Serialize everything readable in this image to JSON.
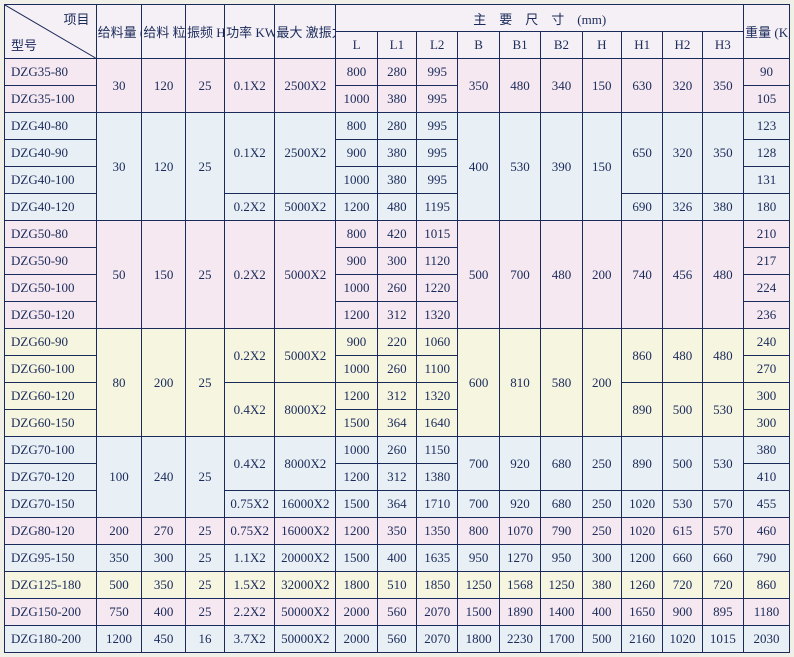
{
  "header": {
    "diag_top": "项目",
    "diag_bot": "型号",
    "feed_rate": "给料量\n(t/h)",
    "feed_size": "给料\n粒度\nmm",
    "freq": "振频\nHz",
    "power": "功率\nKW",
    "force": "最大\n激振力\nN",
    "dims": "主　要　尺　寸　(mm)",
    "L": "L",
    "L1": "L1",
    "L2": "L2",
    "B": "B",
    "B1": "B1",
    "B2": "B2",
    "H": "H",
    "H1": "H1",
    "H2": "H2",
    "H3": "H3",
    "weight": "重量\n(Kg)"
  },
  "colors": {
    "pink": "#f5e8f0",
    "blue": "#e8f0f5",
    "yellow": "#f5f5e0",
    "border": "#1a2a5a",
    "text": "#1a2a5a"
  },
  "rows": [
    {
      "model": "DZG35-80",
      "c": "pink",
      "feed": "30",
      "size": "120",
      "freq": "25",
      "pow": "0.1X2",
      "force": "2500X2",
      "L": "800",
      "L1": "280",
      "L2": "995",
      "B": "350",
      "B1": "480",
      "B2": "340",
      "H": "150",
      "H1": "630",
      "H2": "320",
      "H3": "350",
      "wt": "90",
      "span": {
        "feed": 2,
        "size": 2,
        "freq": 2,
        "pow": 2,
        "force": 2,
        "B": 2,
        "B1": 2,
        "B2": 2,
        "H": 2,
        "H1": 2,
        "H2": 2,
        "H3": 2
      }
    },
    {
      "model": "DZG35-100",
      "c": "pink",
      "L": "1000",
      "L1": "380",
      "L2": "995",
      "wt": "105"
    },
    {
      "model": "DZG40-80",
      "c": "blue",
      "feed": "30",
      "size": "120",
      "freq": "25",
      "pow": "0.1X2",
      "force": "2500X2",
      "L": "800",
      "L1": "280",
      "L2": "995",
      "B": "400",
      "B1": "530",
      "B2": "390",
      "H": "150",
      "H1": "650",
      "H2": "320",
      "H3": "350",
      "wt": "123",
      "span": {
        "feed": 4,
        "size": 4,
        "freq": 4,
        "pow": 3,
        "force": 3,
        "B": 4,
        "B1": 4,
        "B2": 4,
        "H": 4,
        "H1": 3,
        "H2": 3,
        "H3": 3
      }
    },
    {
      "model": "DZG40-90",
      "c": "blue",
      "L": "900",
      "L1": "380",
      "L2": "995",
      "wt": "128"
    },
    {
      "model": "DZG40-100",
      "c": "blue",
      "L": "1000",
      "L1": "380",
      "L2": "995",
      "wt": "131"
    },
    {
      "model": "DZG40-120",
      "c": "blue",
      "pow": "0.2X2",
      "force": "5000X2",
      "L": "1200",
      "L1": "480",
      "L2": "1195",
      "H1": "690",
      "H2": "326",
      "H3": "380",
      "wt": "180"
    },
    {
      "model": "DZG50-80",
      "c": "pink",
      "feed": "50",
      "size": "150",
      "freq": "25",
      "pow": "0.2X2",
      "force": "5000X2",
      "L": "800",
      "L1": "420",
      "L2": "1015",
      "B": "500",
      "B1": "700",
      "B2": "480",
      "H": "200",
      "H1": "740",
      "H2": "456",
      "H3": "480",
      "wt": "210",
      "span": {
        "feed": 4,
        "size": 4,
        "freq": 4,
        "pow": 4,
        "force": 4,
        "B": 4,
        "B1": 4,
        "B2": 4,
        "H": 4,
        "H1": 4,
        "H2": 4,
        "H3": 4
      }
    },
    {
      "model": "DZG50-90",
      "c": "pink",
      "L": "900",
      "L1": "300",
      "L2": "1120",
      "wt": "217"
    },
    {
      "model": "DZG50-100",
      "c": "pink",
      "L": "1000",
      "L1": "260",
      "L2": "1220",
      "wt": "224"
    },
    {
      "model": "DZG50-120",
      "c": "pink",
      "L": "1200",
      "L1": "312",
      "L2": "1320",
      "wt": "236"
    },
    {
      "model": "DZG60-90",
      "c": "yellow",
      "feed": "80",
      "size": "200",
      "freq": "25",
      "pow": "0.2X2",
      "force": "5000X2",
      "L": "900",
      "L1": "220",
      "L2": "1060",
      "B": "600",
      "B1": "810",
      "B2": "580",
      "H": "200",
      "H1": "860",
      "H2": "480",
      "H3": "480",
      "wt": "240",
      "span": {
        "feed": 4,
        "size": 4,
        "freq": 4,
        "pow": 2,
        "force": 2,
        "B": 4,
        "B1": 4,
        "B2": 4,
        "H": 4,
        "H1": 2,
        "H2": 2,
        "H3": 2
      }
    },
    {
      "model": "DZG60-100",
      "c": "yellow",
      "L": "1000",
      "L1": "260",
      "L2": "1100",
      "wt": "270"
    },
    {
      "model": "DZG60-120",
      "c": "yellow",
      "pow": "0.4X2",
      "force": "8000X2",
      "L": "1200",
      "L1": "312",
      "L2": "1320",
      "H1": "890",
      "H2": "500",
      "H3": "530",
      "wt": "300",
      "span": {
        "pow": 2,
        "force": 2,
        "H1": 2,
        "H2": 2,
        "H3": 2
      }
    },
    {
      "model": "DZG60-150",
      "c": "yellow",
      "L": "1500",
      "L1": "364",
      "L2": "1640",
      "wt": "300"
    },
    {
      "model": "DZG70-100",
      "c": "blue",
      "feed": "100",
      "size": "240",
      "freq": "25",
      "pow": "0.4X2",
      "force": "8000X2",
      "L": "1000",
      "L1": "260",
      "L2": "1150",
      "B": "700",
      "B1": "920",
      "B2": "680",
      "H": "250",
      "H1": "890",
      "H2": "500",
      "H3": "530",
      "wt": "380",
      "span": {
        "feed": 3,
        "size": 3,
        "freq": 3,
        "pow": 2,
        "force": 2,
        "B": 2,
        "B1": 2,
        "B2": 2,
        "H": 2,
        "H1": 2,
        "H2": 2,
        "H3": 2
      }
    },
    {
      "model": "DZG70-120",
      "c": "blue",
      "L": "1200",
      "L1": "312",
      "L2": "1380",
      "wt": "410"
    },
    {
      "model": "DZG70-150",
      "c": "blue",
      "pow": "0.75X2",
      "force": "16000X2",
      "L": "1500",
      "L1": "364",
      "L2": "1710",
      "B": "700",
      "B1": "920",
      "B2": "680",
      "H": "250",
      "H1": "1020",
      "H2": "530",
      "H3": "570",
      "wt": "455"
    },
    {
      "model": "DZG80-120",
      "c": "pink",
      "feed": "200",
      "size": "270",
      "freq": "25",
      "pow": "0.75X2",
      "force": "16000X2",
      "L": "1200",
      "L1": "350",
      "L2": "1350",
      "B": "800",
      "B1": "1070",
      "B2": "790",
      "H": "250",
      "H1": "1020",
      "H2": "615",
      "H3": "570",
      "wt": "460"
    },
    {
      "model": "DZG95-150",
      "c": "blue",
      "feed": "350",
      "size": "300",
      "freq": "25",
      "pow": "1.1X2",
      "force": "20000X2",
      "L": "1500",
      "L1": "400",
      "L2": "1635",
      "B": "950",
      "B1": "1270",
      "B2": "950",
      "H": "300",
      "H1": "1200",
      "H2": "660",
      "H3": "660",
      "wt": "790"
    },
    {
      "model": "DZG125-180",
      "c": "yellow",
      "feed": "500",
      "size": "350",
      "freq": "25",
      "pow": "1.5X2",
      "force": "32000X2",
      "L": "1800",
      "L1": "510",
      "L2": "1850",
      "B": "1250",
      "B1": "1568",
      "B2": "1250",
      "H": "380",
      "H1": "1260",
      "H2": "720",
      "H3": "720",
      "wt": "860"
    },
    {
      "model": "DZG150-200",
      "c": "pink",
      "feed": "750",
      "size": "400",
      "freq": "25",
      "pow": "2.2X2",
      "force": "50000X2",
      "L": "2000",
      "L1": "560",
      "L2": "2070",
      "B": "1500",
      "B1": "1890",
      "B2": "1400",
      "H": "400",
      "H1": "1650",
      "H2": "900",
      "H3": "895",
      "wt": "1180"
    },
    {
      "model": "DZG180-200",
      "c": "blue",
      "feed": "1200",
      "size": "450",
      "freq": "16",
      "pow": "3.7X2",
      "force": "50000X2",
      "L": "2000",
      "L1": "560",
      "L2": "2070",
      "B": "1800",
      "B1": "2230",
      "B2": "1700",
      "H": "500",
      "H1": "2160",
      "H2": "1020",
      "H3": "1015",
      "wt": "2030"
    }
  ]
}
